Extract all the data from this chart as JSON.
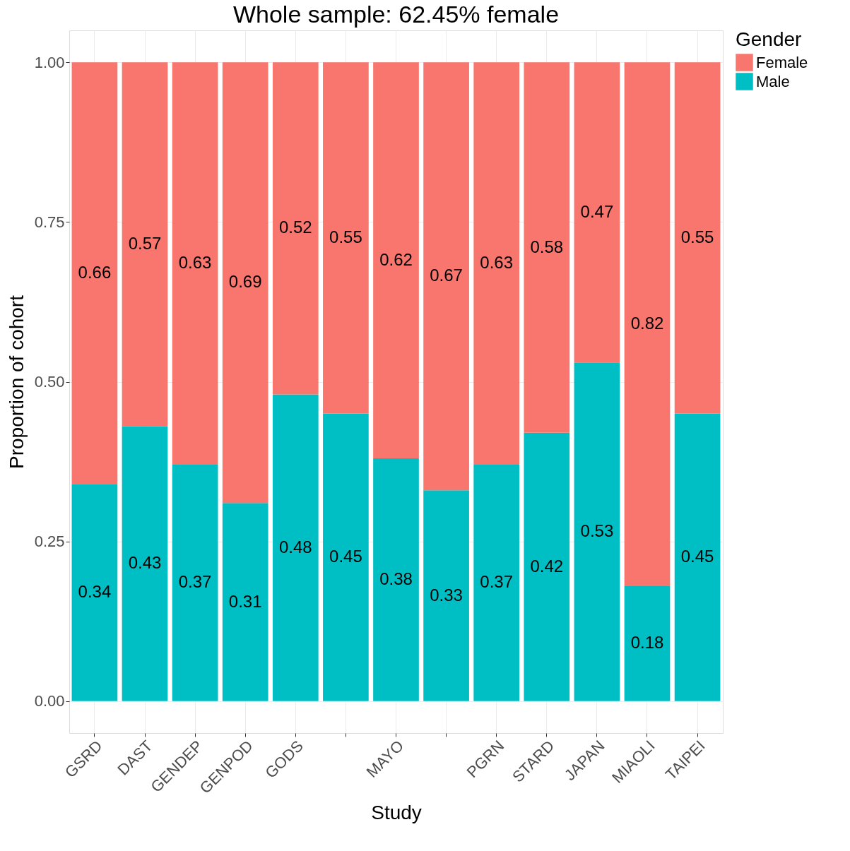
{
  "chart_data": {
    "type": "bar",
    "title": "Whole sample: 62.45% female",
    "xlabel": "Study",
    "ylabel": "Proportion of cohort",
    "legend_title": "Gender",
    "categories": [
      "GSRD",
      "DAST",
      "GENDEP",
      "GENPOD",
      "GODS",
      null,
      "MAYO",
      null,
      "PGRN",
      "STARD",
      "JAPAN",
      "MIAOLI",
      "TAIPEI"
    ],
    "series": [
      {
        "name": "Male",
        "color": "#00bfc4",
        "values": [
          0.34,
          0.43,
          0.37,
          0.31,
          0.48,
          0.45,
          0.38,
          0.33,
          0.37,
          0.42,
          0.53,
          0.18,
          0.45
        ]
      },
      {
        "name": "Female",
        "color": "#f8766d",
        "values": [
          0.66,
          0.57,
          0.63,
          0.69,
          0.52,
          0.55,
          0.62,
          0.67,
          0.63,
          0.58,
          0.47,
          0.82,
          0.55
        ]
      }
    ],
    "stacked": true,
    "data_labels": true,
    "ylim": [
      -0.05,
      1.05
    ],
    "yticks": [
      {
        "value": 0,
        "label": "0.00"
      },
      {
        "value": 0.25,
        "label": "0.25"
      },
      {
        "value": 0.5,
        "label": "0.50"
      },
      {
        "value": 0.75,
        "label": "0.75"
      },
      {
        "value": 1,
        "label": "1.00"
      }
    ],
    "grid": true,
    "legend": "right"
  }
}
